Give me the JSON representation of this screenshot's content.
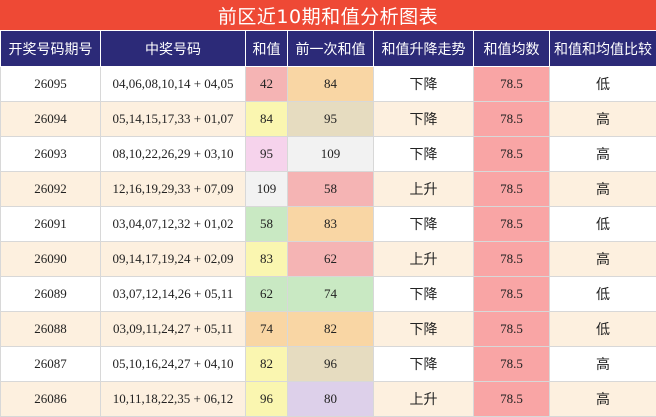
{
  "title": "前区近10期和值分析图表",
  "headers": [
    "开奖号码期号",
    "中奖号码",
    "和值",
    "前一次和值",
    "和值升降走势",
    "和值均数",
    "和值和均值比较"
  ],
  "rows": [
    {
      "period": "26095",
      "numbers": "04,06,08,10,14 + 04,05",
      "sum": "42",
      "prev_sum": "84",
      "trend": "下降",
      "avg": "78.5",
      "compare": "低"
    },
    {
      "period": "26094",
      "numbers": "05,14,15,17,33 + 01,07",
      "sum": "84",
      "prev_sum": "95",
      "trend": "下降",
      "avg": "78.5",
      "compare": "高"
    },
    {
      "period": "26093",
      "numbers": "08,10,22,26,29 + 03,10",
      "sum": "95",
      "prev_sum": "109",
      "trend": "下降",
      "avg": "78.5",
      "compare": "高"
    },
    {
      "period": "26092",
      "numbers": "12,16,19,29,33 + 07,09",
      "sum": "109",
      "prev_sum": "58",
      "trend": "上升",
      "avg": "78.5",
      "compare": "高"
    },
    {
      "period": "26091",
      "numbers": "03,04,07,12,32 + 01,02",
      "sum": "58",
      "prev_sum": "83",
      "trend": "下降",
      "avg": "78.5",
      "compare": "低"
    },
    {
      "period": "26090",
      "numbers": "09,14,17,19,24 + 02,09",
      "sum": "83",
      "prev_sum": "62",
      "trend": "上升",
      "avg": "78.5",
      "compare": "高"
    },
    {
      "period": "26089",
      "numbers": "03,07,12,14,26 + 05,11",
      "sum": "62",
      "prev_sum": "74",
      "trend": "下降",
      "avg": "78.5",
      "compare": "低"
    },
    {
      "period": "26088",
      "numbers": "03,09,11,24,27 + 05,11",
      "sum": "74",
      "prev_sum": "82",
      "trend": "下降",
      "avg": "78.5",
      "compare": "低"
    },
    {
      "period": "26087",
      "numbers": "05,10,16,24,27 + 04,10",
      "sum": "82",
      "prev_sum": "96",
      "trend": "下降",
      "avg": "78.5",
      "compare": "高"
    },
    {
      "period": "26086",
      "numbers": "10,11,18,22,35 + 06,12",
      "sum": "96",
      "prev_sum": "80",
      "trend": "上升",
      "avg": "78.5",
      "compare": "高"
    }
  ],
  "colors": {
    "title_bg": "#ee4935",
    "header_bg": "#2c2a78",
    "even_row_bg": "#fdf0df",
    "avg_bg": "#f9a5a5"
  }
}
